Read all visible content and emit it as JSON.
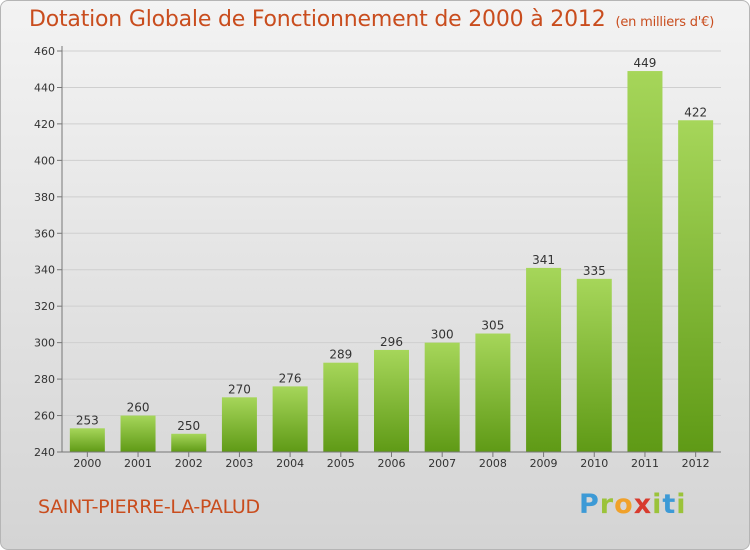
{
  "title": "Dotation Globale de Fonctionnement de 2000 à 2012",
  "subtitle": "(en milliers d'€)",
  "commune": "SAINT-PIERRE-LA-PALUD",
  "logo": {
    "letters": [
      "P",
      "r",
      "o",
      "x",
      "i",
      "t",
      "i"
    ],
    "colors": [
      "#3d9ad6",
      "#9bc33a",
      "#f0a12a",
      "#d83b2e",
      "#9bc33a",
      "#3d9ad6",
      "#9bc33a"
    ]
  },
  "chart_data": {
    "type": "bar",
    "categories": [
      "2000",
      "2001",
      "2002",
      "2003",
      "2004",
      "2005",
      "2006",
      "2007",
      "2008",
      "2009",
      "2010",
      "2011",
      "2012"
    ],
    "values": [
      253,
      260,
      250,
      270,
      276,
      289,
      296,
      300,
      305,
      341,
      335,
      449,
      422
    ],
    "title": "Dotation Globale de Fonctionnement de 2000 à 2012",
    "subtitle": "(en milliers d'€)",
    "ylim": [
      240,
      460
    ],
    "yticks": [
      240,
      260,
      280,
      300,
      320,
      340,
      360,
      380,
      400,
      420,
      440,
      460
    ],
    "grid": true,
    "colors": {
      "bar_light": "#a6d65a",
      "bar_dark": "#5f9a16",
      "grid": "#cfcfcf",
      "axis": "#777777"
    }
  }
}
